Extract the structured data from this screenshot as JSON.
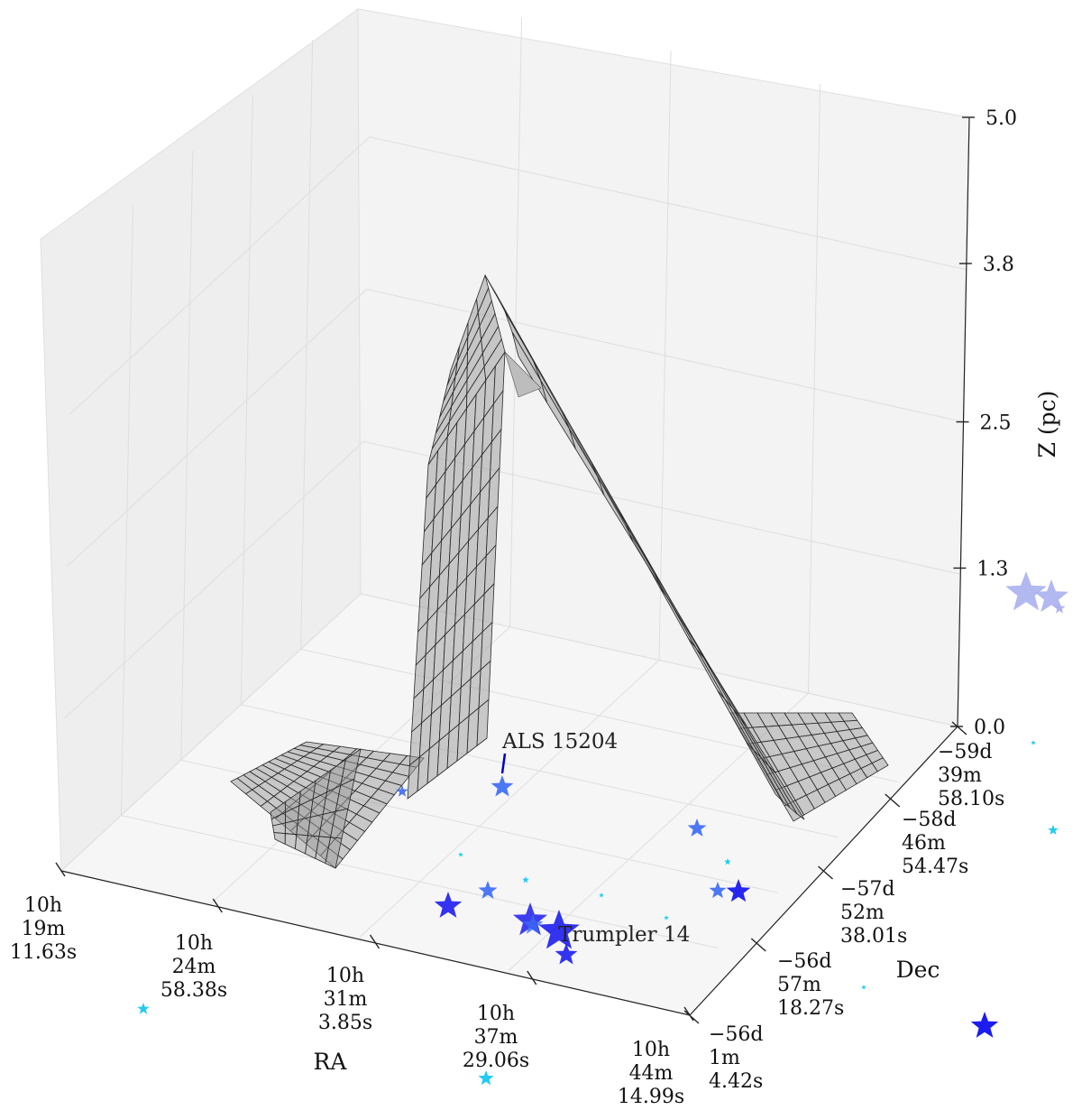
{
  "chart_data": {
    "type": "surface3d",
    "x_axis": {
      "label": "RA",
      "ticks": [
        [
          "10h",
          "19m",
          "11.63s"
        ],
        [
          "10h",
          "24m",
          "58.38s"
        ],
        [
          "10h",
          "31m",
          "3.85s"
        ],
        [
          "10h",
          "37m",
          "29.06s"
        ],
        [
          "10h",
          "44m",
          "14.99s"
        ]
      ]
    },
    "y_axis": {
      "label": "Dec",
      "ticks": [
        [
          "−59d",
          "39m",
          "58.10s"
        ],
        [
          "−58d",
          "46m",
          "54.47s"
        ],
        [
          "−57d",
          "52m",
          "38.01s"
        ],
        [
          "−56d",
          "57m",
          "18.27s"
        ],
        [
          "−56d",
          "1m",
          "4.42s"
        ]
      ]
    },
    "z_axis": {
      "label": "Z (pc)",
      "ticks": [
        "0.0",
        "1.3",
        "2.5",
        "3.8",
        "5.0"
      ],
      "range": [
        0.0,
        5.0
      ]
    },
    "surface": {
      "peak_z": 3.9,
      "color": "#9a9a9a"
    },
    "annotations": [
      {
        "text": "ALS 15204"
      },
      {
        "text": "Trumpler 14"
      }
    ],
    "grid": true,
    "colors": {
      "star_dark": "#1010ee",
      "star_mid": "#3a6af5",
      "star_light": "#17c8f0",
      "star_faded": "#aab0ee",
      "label_line": "#0000cc"
    }
  }
}
